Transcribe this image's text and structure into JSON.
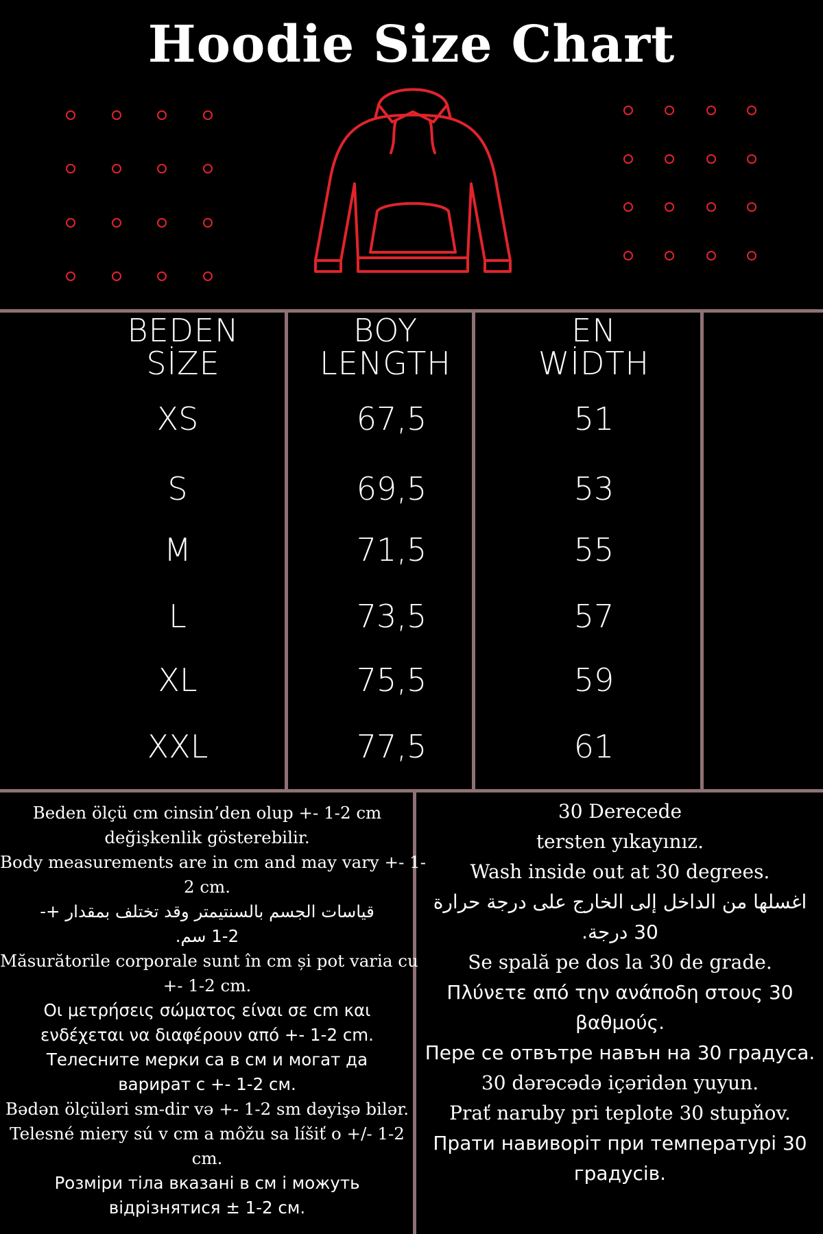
{
  "title": "Hoodie Size Chart",
  "colors": {
    "accent": "#e0242c",
    "divider": "#8e7174",
    "background": "#000000",
    "text": "#ffffff"
  },
  "icons": [
    "hoodie-outline-icon",
    "dot-grid-decoration"
  ],
  "table": {
    "headers": [
      {
        "line1": "BEDEN",
        "line2": "SİZE"
      },
      {
        "line1": "BOY",
        "line2": "LENGTH"
      },
      {
        "line1": "EN",
        "line2": "WİDTH"
      }
    ],
    "rows": [
      {
        "size": "XS",
        "length": "67,5",
        "width": "51"
      },
      {
        "size": "S",
        "length": "69,5",
        "width": "53"
      },
      {
        "size": "M",
        "length": "71,5",
        "width": "55"
      },
      {
        "size": "L",
        "length": "73,5",
        "width": "57"
      },
      {
        "size": "XL",
        "length": "75,5",
        "width": "59"
      },
      {
        "size": "XXL",
        "length": "77,5",
        "width": "61"
      }
    ]
  },
  "measurement_note": [
    "Beden ölçü cm cinsin’den olup +- 1-2 cm",
    "değişkenlik gösterebilir.",
    "Body measurements are in cm and may vary +- 1-",
    "2 cm.",
    "قياسات الجسم بالسنتيمتر وقد تختلف بمقدار +-",
    "1-2 سم.",
    "Măsurătorile corporale sunt în cm și pot varia cu",
    "+- 1-2 cm.",
    "Οι μετρήσεις σώματος είναι σε cm και",
    "ενδέχεται να διαφέρουν από +- 1-2 cm.",
    "Телесните мерки са в см и могат да",
    "варират с +- 1-2 см.",
    "Bədən ölçüləri sm-dir və +- 1-2 sm dəyişə bilər.",
    "Telesné miery sú v cm a môžu sa líšiť o +/- 1-2",
    "cm.",
    "Розміри тіла вказані в см і можуть",
    "відрізнятися ± 1-2 см."
  ],
  "wash_note": [
    "30 Derecede",
    "tersten yıkayınız.",
    "Wash inside out at 30 degrees.",
    "اغسلها من الداخل إلى الخارج على درجة حرارة",
    "30 درجة.",
    "Se spală pe dos la 30 de grade.",
    "Πλύνετε από την ανάποδη στους 30",
    "βαθμούς.",
    "Пере се отвътре навън на 30 градуса.",
    "30 dərəcədə içəridən yuyun.",
    "Prať naruby pri teplote 30 stupňov.",
    "Прати навиворіт при температурі 30",
    "градусів."
  ]
}
